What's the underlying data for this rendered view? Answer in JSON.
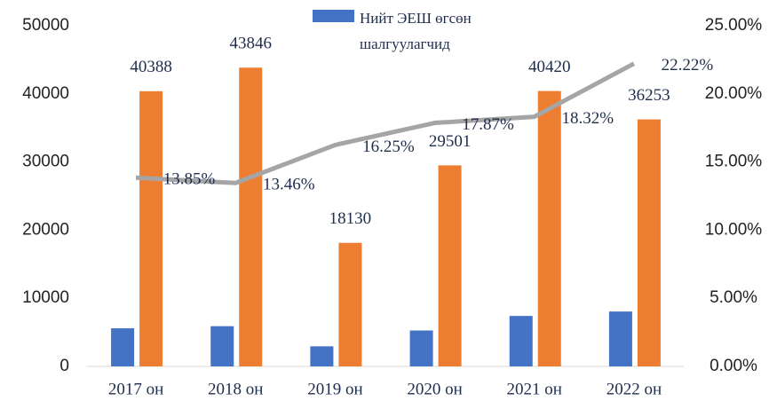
{
  "chart_data": {
    "type": "bar_line",
    "categories": [
      "2017 он",
      "2018 он",
      "2019 он",
      "2020 он",
      "2021 он",
      "2022 он"
    ],
    "series": [
      {
        "name": "Нийт ЭЕШ өгсөн шалгуулагчид",
        "color": "#4472c4",
        "values": [
          5594,
          5902,
          2946,
          5272,
          7405,
          8055
        ]
      },
      {
        "color": "#ed7d31",
        "values": [
          40388,
          43846,
          18130,
          29501,
          40420,
          36253
        ]
      },
      {
        "color": "#a5a5a5",
        "axis": "y2",
        "values": [
          13.85,
          13.46,
          16.25,
          17.87,
          18.32,
          22.22
        ],
        "value_labels": [
          "13.85%",
          "13.46%",
          "16.25%",
          "17.87%",
          "18.32%",
          "22.22%"
        ]
      }
    ],
    "ylim": [
      0,
      50000
    ],
    "yticks": [
      0,
      10000,
      20000,
      30000,
      40000,
      50000
    ],
    "y2lim": [
      0,
      25
    ],
    "y2ticks": [
      {
        "value": 0,
        "label": "0.00%"
      },
      {
        "value": 5,
        "label": "5.00%"
      },
      {
        "value": 10,
        "label": "10.00%"
      },
      {
        "value": 15,
        "label": "15.00%"
      },
      {
        "value": 20,
        "label": "20.00%"
      },
      {
        "value": 25,
        "label": "25.00%"
      }
    ],
    "legend": "top"
  }
}
